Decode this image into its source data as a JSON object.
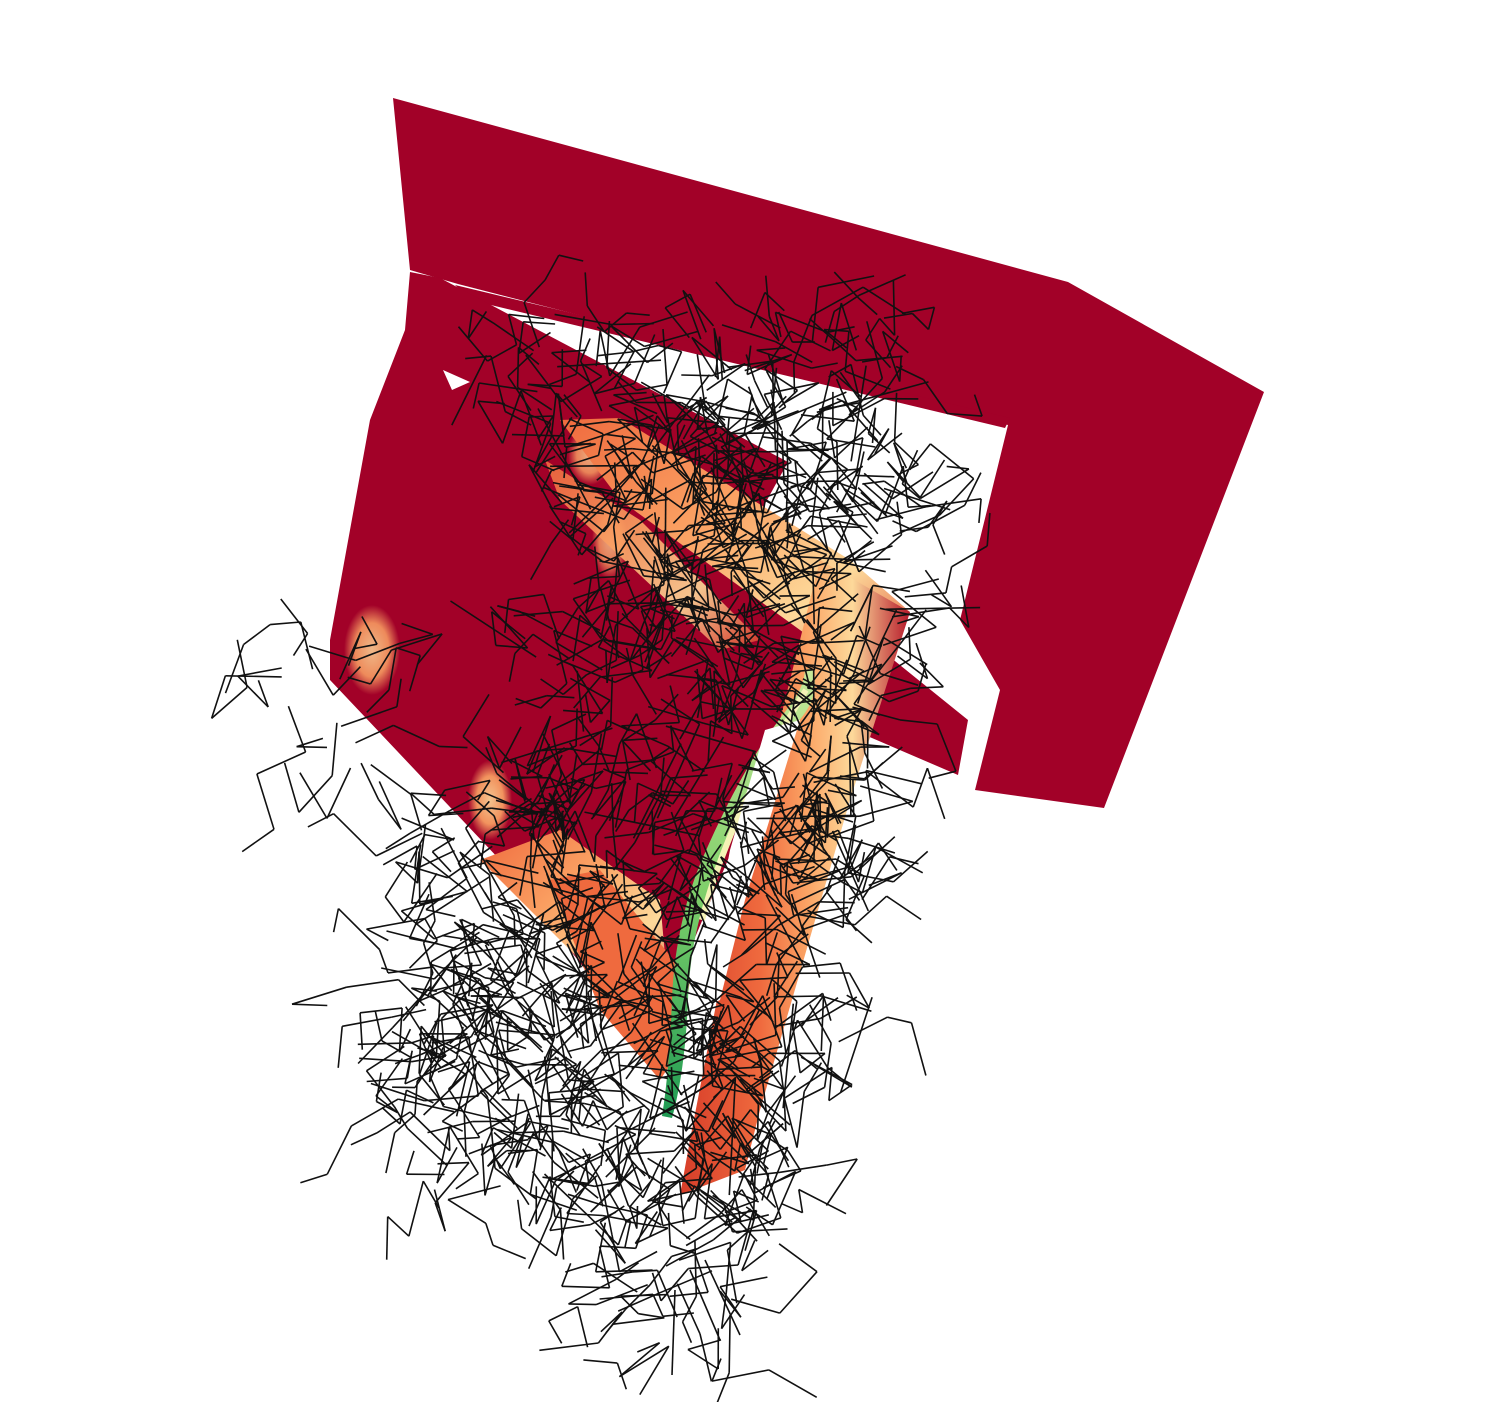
{
  "viewer": {
    "background_color": "#ffffff",
    "surface_colors": {
      "base": "#a20128",
      "deep_red": "#b5182a",
      "red_orange": "#d73d29",
      "orange": "#ef6a3e",
      "light_orange": "#fba364",
      "peach": "#fdd99a",
      "pale_yellow": "#f5f3b6",
      "light_green": "#c7e89a",
      "green": "#7fcf6a",
      "dark_green": "#1f9a53"
    },
    "wireframe_color": "#111111",
    "icons": [
      "molecular-surface",
      "stick-wireframe"
    ]
  }
}
